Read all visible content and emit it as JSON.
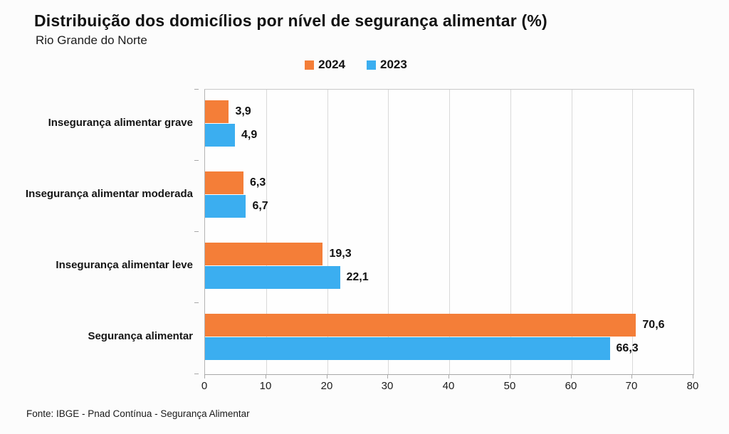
{
  "header": {
    "title": "Distribuição dos domicílios por nível de segurança alimentar (%)",
    "subtitle": "Rio Grande do Norte"
  },
  "legend": [
    {
      "label": "2024",
      "color": "#F47E38"
    },
    {
      "label": "2023",
      "color": "#3BAEF0"
    }
  ],
  "chart_data": {
    "type": "bar",
    "orientation": "horizontal",
    "title": "Distribuição dos domicílios por nível de segurança alimentar (%)",
    "subtitle": "Rio Grande do Norte",
    "categories": [
      "Insegurança alimentar grave",
      "Insegurança alimentar moderada",
      "Insegurança alimentar leve",
      "Segurança alimentar"
    ],
    "series": [
      {
        "name": "2024",
        "color": "#F47E38",
        "values": [
          3.9,
          6.3,
          19.3,
          70.6
        ]
      },
      {
        "name": "2023",
        "color": "#3BAEF0",
        "values": [
          4.9,
          6.7,
          22.1,
          66.3
        ]
      }
    ],
    "value_label_format": "comma-decimal",
    "xlim": [
      0,
      80
    ],
    "x_ticks": [
      0,
      10,
      20,
      30,
      40,
      50,
      60,
      70,
      80
    ],
    "grid": true,
    "legend_position": "top-center"
  },
  "footer": {
    "source": "Fonte: IBGE - Pnad Contínua - Segurança Alimentar"
  },
  "colors": {
    "series_2024": "#F47E38",
    "series_2023": "#3BAEF0",
    "grid": "#d9d9d9",
    "axis": "#a8a8a8",
    "text": "#121212"
  }
}
